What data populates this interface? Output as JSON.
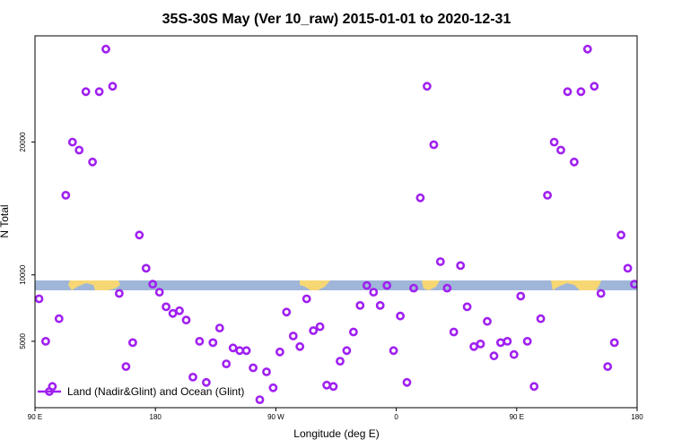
{
  "chart_data": {
    "type": "scatter",
    "title": "35S-30S May (Ver 10_raw)   2015-01-01 to 2020-12-31",
    "xlabel": "Longitude (deg E)",
    "ylabel": "N Total",
    "x_ticks": [
      {
        "value": 90,
        "label": "90 E"
      },
      {
        "value": 180,
        "label": "180"
      },
      {
        "value": 270,
        "label": "90 W"
      },
      {
        "value": 360,
        "label": "0"
      },
      {
        "value": 450,
        "label": "90 E"
      },
      {
        "value": 540,
        "label": "180"
      }
    ],
    "y_ticks": [
      5000,
      10000,
      20000
    ],
    "xlim": [
      90,
      540
    ],
    "ylim": [
      0,
      28000
    ],
    "grid": false,
    "legend_position": "bottom-left",
    "colors": {
      "series": "#a020f0",
      "ocean_band": "#9fb6d8",
      "land_band": "#f7d774"
    },
    "series": [
      {
        "name": "Land (Nadir&Glint) and Ocean (Glint)",
        "marker": "open-circle",
        "points": [
          [
            93,
            8200
          ],
          [
            98,
            5000
          ],
          [
            103,
            1600
          ],
          [
            108,
            6700
          ],
          [
            113,
            16000
          ],
          [
            118,
            20000
          ],
          [
            123,
            19400
          ],
          [
            128,
            23800
          ],
          [
            133,
            18500
          ],
          [
            138,
            23800
          ],
          [
            143,
            27000
          ],
          [
            148,
            24200
          ],
          [
            153,
            8600
          ],
          [
            158,
            3100
          ],
          [
            163,
            4900
          ],
          [
            168,
            13000
          ],
          [
            173,
            10500
          ],
          [
            178,
            9300
          ],
          [
            183,
            8700
          ],
          [
            188,
            7600
          ],
          [
            193,
            7100
          ],
          [
            198,
            7300
          ],
          [
            203,
            6600
          ],
          [
            208,
            2300
          ],
          [
            213,
            5000
          ],
          [
            218,
            1900
          ],
          [
            223,
            4900
          ],
          [
            228,
            6000
          ],
          [
            233,
            3300
          ],
          [
            238,
            4500
          ],
          [
            243,
            4300
          ],
          [
            248,
            4300
          ],
          [
            253,
            3000
          ],
          [
            258,
            600
          ],
          [
            263,
            2700
          ],
          [
            268,
            1500
          ],
          [
            273,
            4200
          ],
          [
            278,
            7200
          ],
          [
            283,
            5400
          ],
          [
            288,
            4600
          ],
          [
            293,
            8200
          ],
          [
            298,
            5800
          ],
          [
            303,
            6100
          ],
          [
            308,
            1700
          ],
          [
            313,
            1600
          ],
          [
            318,
            3500
          ],
          [
            323,
            4300
          ],
          [
            328,
            5700
          ],
          [
            333,
            7700
          ],
          [
            338,
            9200
          ],
          [
            343,
            8700
          ],
          [
            348,
            7700
          ],
          [
            353,
            9200
          ],
          [
            358,
            4300
          ],
          [
            363,
            6900
          ],
          [
            368,
            1900
          ],
          [
            373,
            9000
          ],
          [
            378,
            15800
          ],
          [
            383,
            24200
          ],
          [
            388,
            19800
          ],
          [
            393,
            11000
          ],
          [
            398,
            9000
          ],
          [
            403,
            5700
          ],
          [
            408,
            10700
          ],
          [
            413,
            7600
          ],
          [
            418,
            4600
          ],
          [
            423,
            4800
          ],
          [
            428,
            6500
          ],
          [
            433,
            3900
          ],
          [
            438,
            4900
          ],
          [
            443,
            5000
          ],
          [
            448,
            4000
          ],
          [
            453,
            8400
          ],
          [
            458,
            5000
          ],
          [
            463,
            1600
          ],
          [
            468,
            6700
          ],
          [
            473,
            16000
          ],
          [
            478,
            20000
          ],
          [
            483,
            19400
          ],
          [
            488,
            23800
          ],
          [
            493,
            18500
          ],
          [
            498,
            23800
          ],
          [
            503,
            27000
          ],
          [
            508,
            24200
          ],
          [
            513,
            8600
          ],
          [
            518,
            3100
          ],
          [
            523,
            4900
          ],
          [
            528,
            13000
          ],
          [
            533,
            10500
          ],
          [
            538,
            9300
          ]
        ]
      }
    ]
  }
}
